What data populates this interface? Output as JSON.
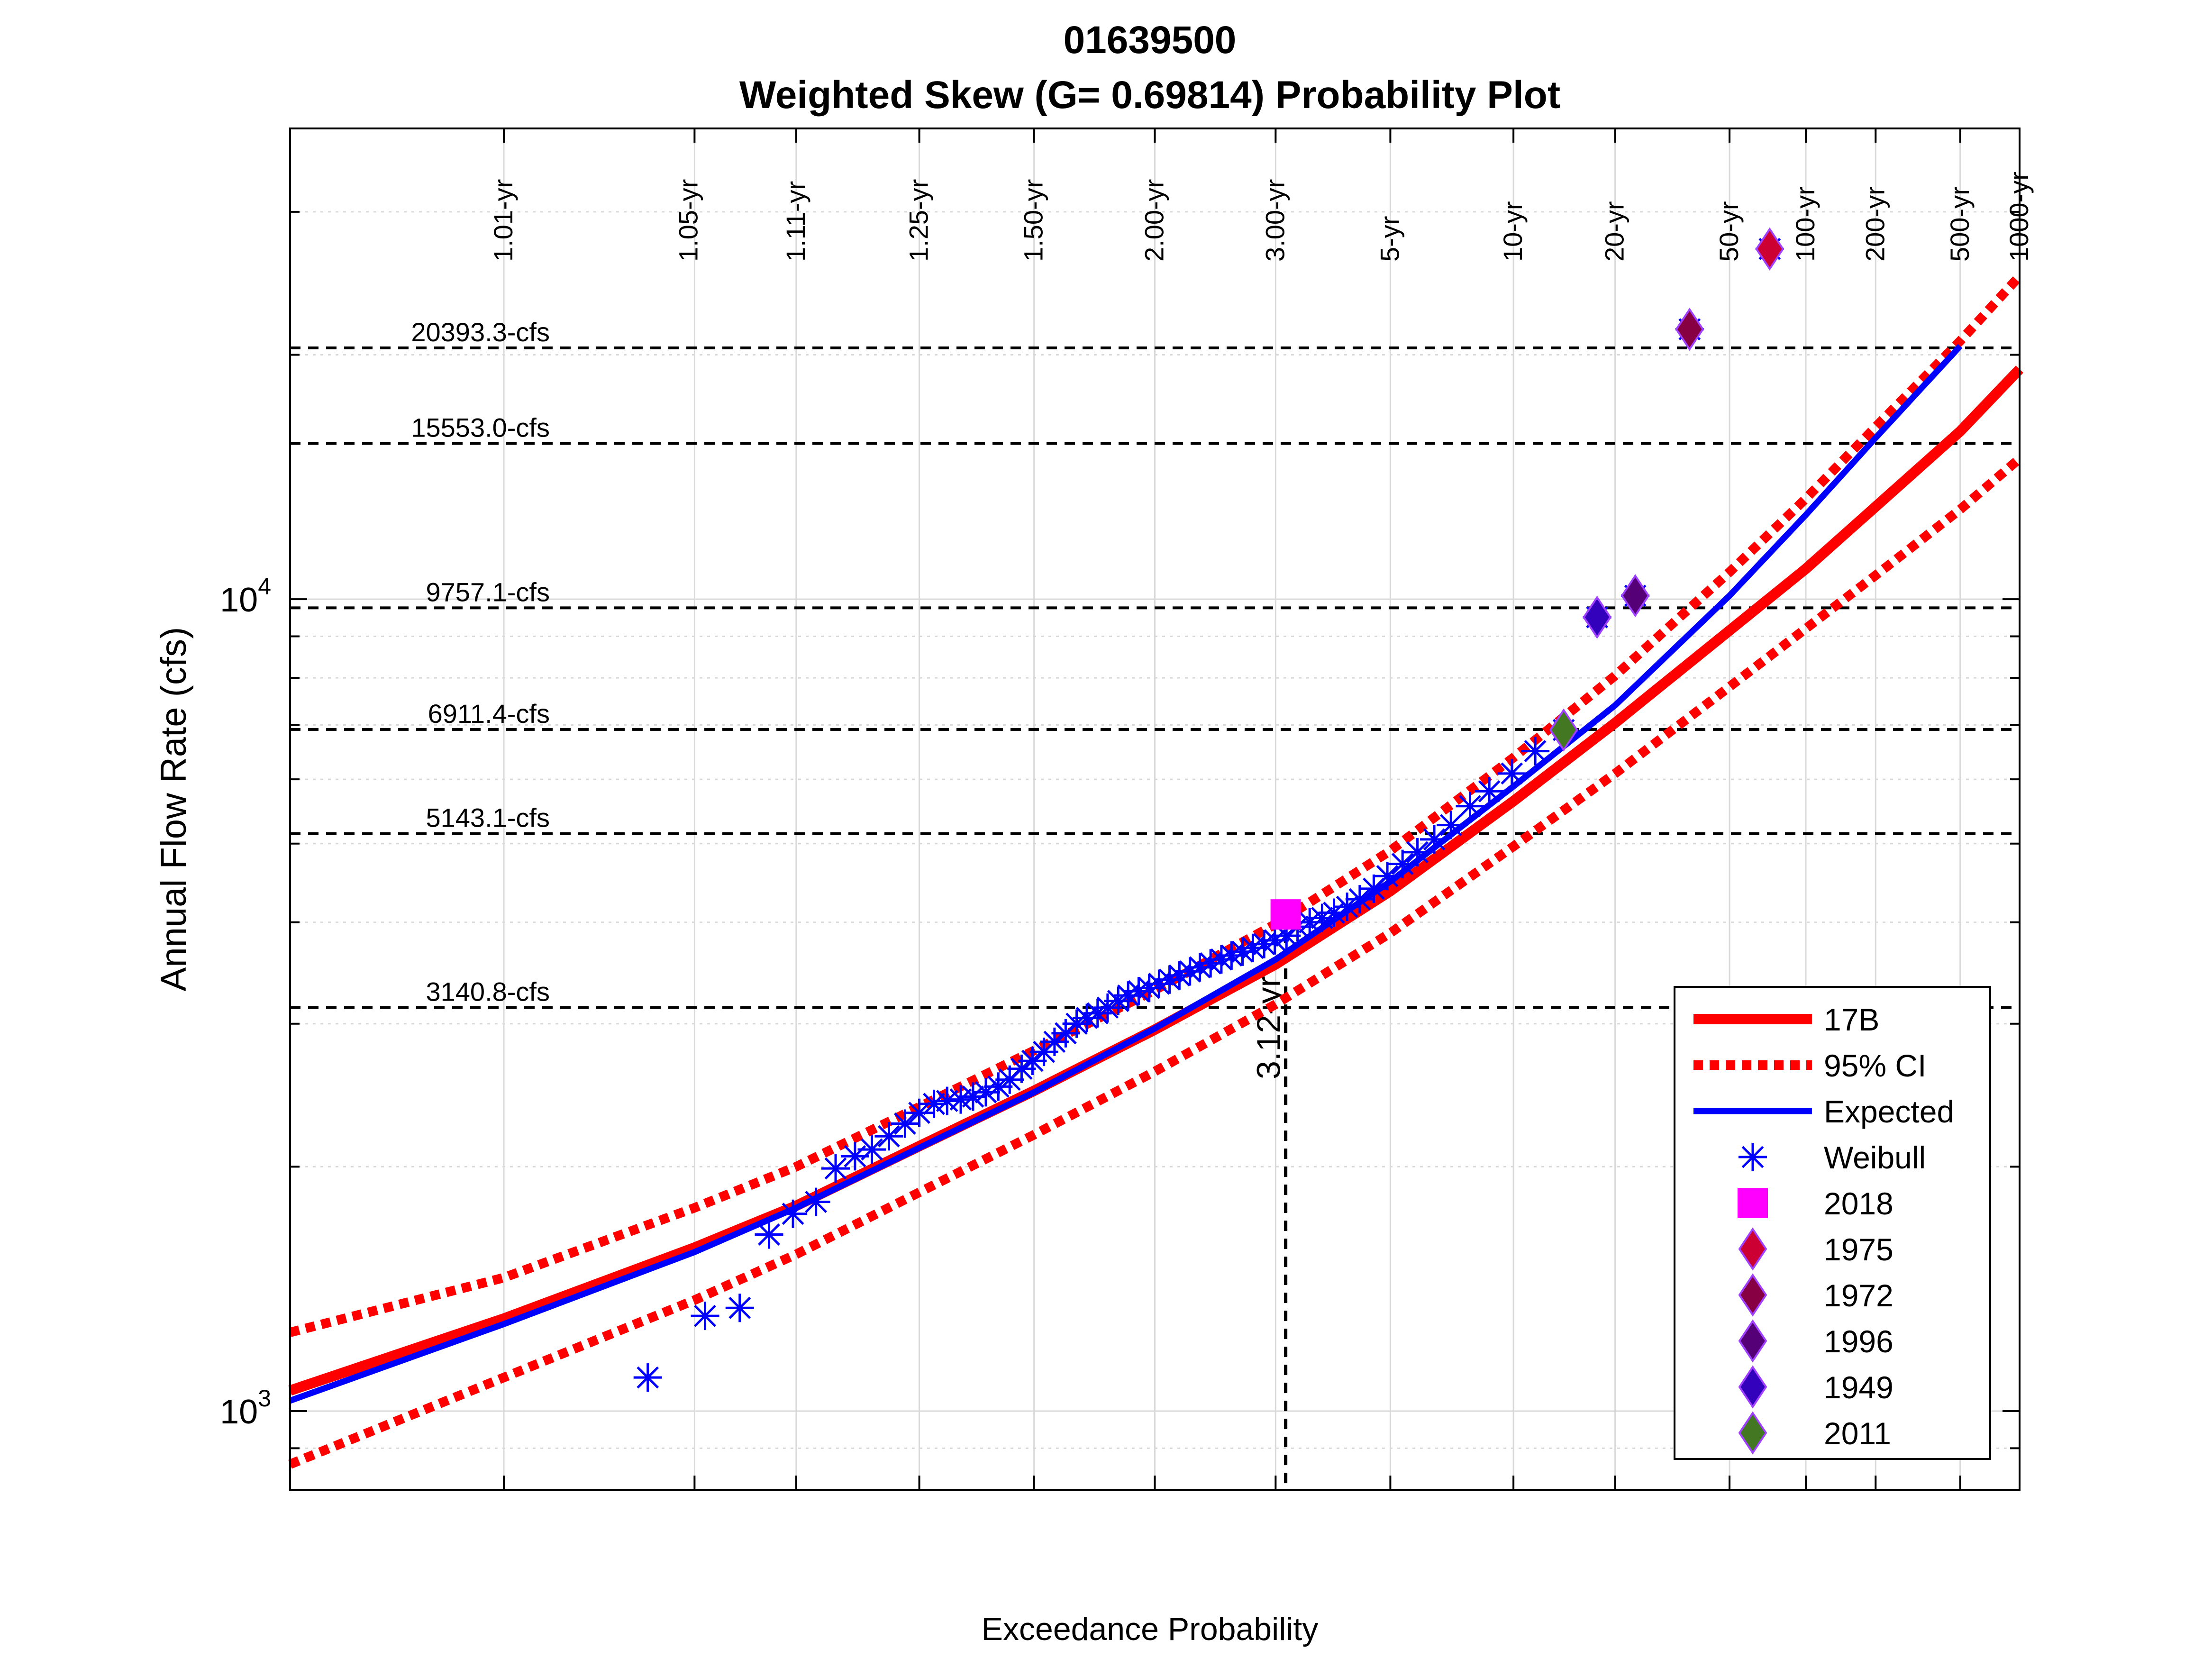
{
  "chart_data": {
    "type": "scatter",
    "title_line1": "01639500",
    "title_line2": "Weighted Skew (G= 0.69814) Probability Plot",
    "xlabel": "Exceedance Probability",
    "ylabel": "Annual Flow Rate (cfs)",
    "x_scale": "normal-probability",
    "y_scale": "log",
    "xlim": [
      0.999,
      0.001
    ],
    "ylim": [
      800,
      38000
    ],
    "grid": true,
    "legend_position": "lower-right",
    "x_ticks": [
      "0.999",
      "0.990",
      "0.950",
      "0.900",
      "0.800",
      "0.667",
      "0.500",
      "0.333",
      "0.200",
      "0.100",
      "0.050",
      "0.020",
      "0.010",
      "0.005",
      "0.002",
      "0.001"
    ],
    "y_tick_labels": [
      {
        "value": 1000,
        "base": "10",
        "exp": "3"
      },
      {
        "value": 10000,
        "base": "10",
        "exp": "4"
      }
    ],
    "return_periods": [
      {
        "label": "1.01-yr",
        "p": 0.99
      },
      {
        "label": "1.05-yr",
        "p": 0.952
      },
      {
        "label": "1.11-yr",
        "p": 0.9
      },
      {
        "label": "1.25-yr",
        "p": 0.8
      },
      {
        "label": "1.50-yr",
        "p": 0.667
      },
      {
        "label": "2.00-yr",
        "p": 0.5
      },
      {
        "label": "3.00-yr",
        "p": 0.333
      },
      {
        "label": "5-yr",
        "p": 0.2
      },
      {
        "label": "10-yr",
        "p": 0.1
      },
      {
        "label": "20-yr",
        "p": 0.05
      },
      {
        "label": "50-yr",
        "p": 0.02
      },
      {
        "label": "100-yr",
        "p": 0.01
      },
      {
        "label": "200-yr",
        "p": 0.005
      },
      {
        "label": "500-yr",
        "p": 0.002
      },
      {
        "label": "1000-yr",
        "p": 0.001
      }
    ],
    "reference_flows": [
      {
        "label": "20393.3-cfs",
        "value": 20393.3
      },
      {
        "label": "15553.0-cfs",
        "value": 15553.0
      },
      {
        "label": "9757.1-cfs",
        "value": 9757.1
      },
      {
        "label": "6911.4-cfs",
        "value": 6911.4
      },
      {
        "label": "5143.1-cfs",
        "value": 5143.1
      },
      {
        "label": "3140.8-cfs",
        "value": 3140.8
      }
    ],
    "event_marker": {
      "label": "3.12-yr",
      "p": 0.32,
      "value": 4090
    },
    "series": [
      {
        "name": "17B",
        "style": "line",
        "color": "#ff0000",
        "points": [
          [
            0.999,
            1060
          ],
          [
            0.99,
            1300
          ],
          [
            0.95,
            1590
          ],
          [
            0.9,
            1790
          ],
          [
            0.8,
            2120
          ],
          [
            0.667,
            2480
          ],
          [
            0.5,
            2950
          ],
          [
            0.333,
            3550
          ],
          [
            0.2,
            4370
          ],
          [
            0.1,
            5640
          ],
          [
            0.05,
            7040
          ],
          [
            0.02,
            9150
          ],
          [
            0.01,
            10900
          ],
          [
            0.005,
            13000
          ],
          [
            0.002,
            16100
          ],
          [
            0.001,
            19200
          ]
        ]
      },
      {
        "name": "95% CI",
        "style": "dotted",
        "color": "#ff0000",
        "points": [
          [
            0.999,
            1250
          ],
          [
            0.99,
            1460
          ],
          [
            0.95,
            1780
          ],
          [
            0.9,
            2000
          ],
          [
            0.8,
            2370
          ],
          [
            0.667,
            2780
          ],
          [
            0.5,
            3300
          ],
          [
            0.333,
            3980
          ],
          [
            0.2,
            4900
          ],
          [
            0.1,
            6380
          ],
          [
            0.05,
            8050
          ],
          [
            0.02,
            10800
          ],
          [
            0.01,
            13300
          ],
          [
            0.005,
            16300
          ],
          [
            0.002,
            20800
          ],
          [
            0.001,
            25000
          ]
        ]
      },
      {
        "name": "",
        "style": "dotted",
        "color": "#ff0000",
        "points": [
          [
            0.999,
            860
          ],
          [
            0.99,
            1100
          ],
          [
            0.95,
            1370
          ],
          [
            0.9,
            1560
          ],
          [
            0.8,
            1860
          ],
          [
            0.667,
            2190
          ],
          [
            0.5,
            2620
          ],
          [
            0.333,
            3170
          ],
          [
            0.2,
            3880
          ],
          [
            0.1,
            4960
          ],
          [
            0.05,
            6100
          ],
          [
            0.02,
            7800
          ],
          [
            0.01,
            9200
          ],
          [
            0.005,
            10700
          ],
          [
            0.002,
            12900
          ],
          [
            0.001,
            14900
          ]
        ]
      },
      {
        "name": "Expected",
        "style": "line",
        "color": "#0000ff",
        "points": [
          [
            0.999,
            1030
          ],
          [
            0.99,
            1280
          ],
          [
            0.95,
            1570
          ],
          [
            0.9,
            1780
          ],
          [
            0.8,
            2110
          ],
          [
            0.667,
            2470
          ],
          [
            0.5,
            2960
          ],
          [
            0.333,
            3600
          ],
          [
            0.2,
            4490
          ],
          [
            0.1,
            5880
          ],
          [
            0.05,
            7400
          ],
          [
            0.02,
            10100
          ],
          [
            0.01,
            12700
          ],
          [
            0.005,
            15800
          ],
          [
            0.002,
            20500
          ]
        ]
      },
      {
        "name": "Weibull",
        "style": "marker-asterisk",
        "color": "#0000ff",
        "points": [
          [
            0.965,
            1100
          ],
          [
            0.946,
            1310
          ],
          [
            0.931,
            1340
          ],
          [
            0.916,
            1650
          ],
          [
            0.902,
            1750
          ],
          [
            0.887,
            1810
          ],
          [
            0.873,
            1990
          ],
          [
            0.858,
            2060
          ],
          [
            0.844,
            2100
          ],
          [
            0.829,
            2180
          ],
          [
            0.814,
            2260
          ],
          [
            0.8,
            2330
          ],
          [
            0.785,
            2390
          ],
          [
            0.771,
            2410
          ],
          [
            0.756,
            2420
          ],
          [
            0.742,
            2440
          ],
          [
            0.727,
            2470
          ],
          [
            0.712,
            2510
          ],
          [
            0.698,
            2560
          ],
          [
            0.683,
            2640
          ],
          [
            0.669,
            2700
          ],
          [
            0.654,
            2770
          ],
          [
            0.64,
            2850
          ],
          [
            0.625,
            2920
          ],
          [
            0.61,
            3000
          ],
          [
            0.596,
            3050
          ],
          [
            0.581,
            3090
          ],
          [
            0.567,
            3140
          ],
          [
            0.552,
            3200
          ],
          [
            0.538,
            3250
          ],
          [
            0.523,
            3290
          ],
          [
            0.508,
            3320
          ],
          [
            0.494,
            3360
          ],
          [
            0.479,
            3400
          ],
          [
            0.465,
            3440
          ],
          [
            0.45,
            3480
          ],
          [
            0.436,
            3520
          ],
          [
            0.421,
            3560
          ],
          [
            0.406,
            3600
          ],
          [
            0.392,
            3640
          ],
          [
            0.377,
            3680
          ],
          [
            0.363,
            3720
          ],
          [
            0.348,
            3760
          ],
          [
            0.334,
            3800
          ],
          [
            0.319,
            3850
          ],
          [
            0.305,
            3950
          ],
          [
            0.29,
            4000
          ],
          [
            0.275,
            4050
          ],
          [
            0.261,
            4110
          ],
          [
            0.246,
            4180
          ],
          [
            0.232,
            4270
          ],
          [
            0.217,
            4400
          ],
          [
            0.203,
            4560
          ],
          [
            0.188,
            4720
          ],
          [
            0.174,
            4880
          ],
          [
            0.159,
            5060
          ],
          [
            0.145,
            5270
          ],
          [
            0.13,
            5560
          ],
          [
            0.116,
            5800
          ],
          [
            0.101,
            6100
          ],
          [
            0.087,
            6500
          ],
          [
            0.072,
            6900
          ],
          [
            0.057,
            9500
          ],
          [
            0.043,
            10100
          ],
          [
            0.028,
            21500
          ],
          [
            0.014,
            27000
          ]
        ]
      },
      {
        "name": "2018",
        "style": "marker-square",
        "color": "#ff00ff",
        "points": [
          [
            0.32,
            4090
          ]
        ]
      },
      {
        "name": "1975",
        "style": "marker-diamond",
        "color": "#cc0033",
        "points": [
          [
            0.014,
            27000
          ]
        ]
      },
      {
        "name": "1972",
        "style": "marker-diamond",
        "color": "#880044",
        "points": [
          [
            0.028,
            21500
          ]
        ]
      },
      {
        "name": "1996",
        "style": "marker-diamond",
        "color": "#550077",
        "points": [
          [
            0.043,
            10100
          ]
        ]
      },
      {
        "name": "1949",
        "style": "marker-diamond",
        "color": "#3300bb",
        "points": [
          [
            0.057,
            9500
          ]
        ]
      },
      {
        "name": "2011",
        "style": "marker-diamond",
        "color": "#447722",
        "points": [
          [
            0.072,
            6900
          ]
        ]
      }
    ]
  }
}
